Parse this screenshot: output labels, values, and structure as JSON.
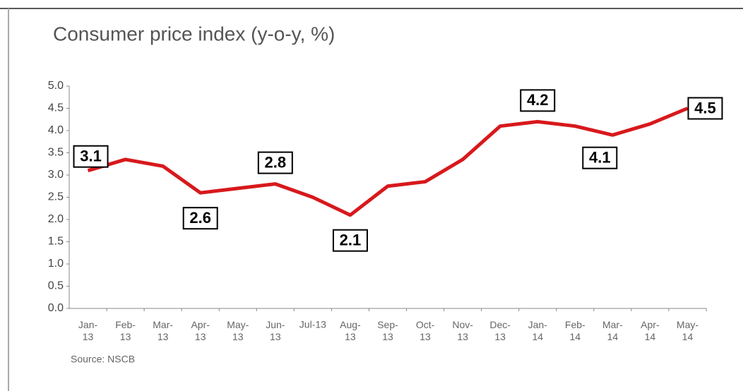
{
  "chart_data": {
    "type": "line",
    "title": "Consumer price index (y-o-y, %)",
    "source": "Source: NSCB",
    "categories": [
      "Jan-13",
      "Feb-13",
      "Mar-13",
      "Apr-13",
      "May-13",
      "Jun-13",
      "Jul-13",
      "Aug-13",
      "Sep-13",
      "Oct-13",
      "Nov-13",
      "Dec-13",
      "Jan-14",
      "Feb-14",
      "Mar-14",
      "Apr-14",
      "May-14"
    ],
    "series": [
      {
        "name": "CPI",
        "color": "#d7191c",
        "values": [
          3.1,
          3.35,
          3.2,
          2.6,
          2.7,
          2.8,
          2.5,
          2.1,
          2.75,
          2.85,
          3.35,
          4.1,
          4.2,
          4.1,
          3.9,
          4.15,
          4.5
        ],
        "value_labels": [
          "3.1",
          null,
          null,
          "2.6",
          null,
          "2.8",
          null,
          "2.1",
          null,
          null,
          null,
          null,
          "4.2",
          "4.1",
          null,
          null,
          "4.5"
        ]
      }
    ],
    "ylim": [
      0,
      5
    ],
    "yticks": [
      {
        "value": 0,
        "label": "0.0"
      },
      {
        "value": 0.5,
        "label": "0.5"
      },
      {
        "value": 1,
        "label": "1.0"
      },
      {
        "value": 1.5,
        "label": "1.5"
      },
      {
        "value": 2,
        "label": "2.0"
      },
      {
        "value": 2.5,
        "label": "2.5"
      },
      {
        "value": 3,
        "label": "3.0"
      },
      {
        "value": 3.5,
        "label": "3.5"
      },
      {
        "value": 4,
        "label": "4.0"
      },
      {
        "value": 4.5,
        "label": "4.5"
      },
      {
        "value": 5,
        "label": "5.0"
      }
    ]
  }
}
